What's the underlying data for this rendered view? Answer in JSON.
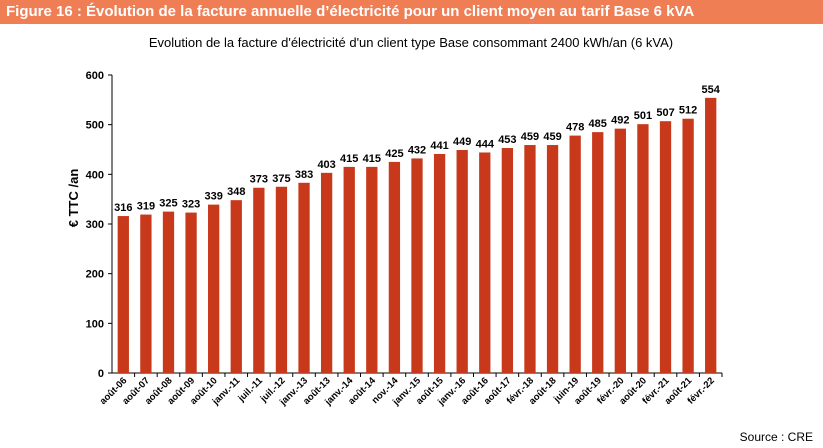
{
  "figure_title": "Figure 16 : Évolution de la facture annuelle d’électricité pour un client moyen au tarif Base 6 kVA",
  "source": "Source : CRE",
  "colors": {
    "bar": "#c8391b",
    "header_bg": "#f07e55"
  },
  "chart_data": {
    "type": "bar",
    "title": "Evolution de la facture d'électricité d'un client type Base consommant 2400 kWh/an (6 kVA)",
    "xlabel": "",
    "ylabel": "€ TTC /an",
    "ylim": [
      0,
      600
    ],
    "yticks": [
      0,
      100,
      200,
      300,
      400,
      500,
      600
    ],
    "grid": false,
    "categories": [
      "août-06",
      "août-07",
      "août-08",
      "août-09",
      "août-10",
      "janv.-11",
      "juil.-11",
      "juil.-12",
      "janv.-13",
      "août-13",
      "janv.-14",
      "août-14",
      "nov.-14",
      "janv.-15",
      "août-15",
      "janv.-16",
      "août-16",
      "août-17",
      "févr.-18",
      "août-18",
      "juin-19",
      "août-19",
      "févr.-20",
      "août-20",
      "févr.-21",
      "août-21",
      "févr.-22"
    ],
    "values": [
      316,
      319,
      325,
      323,
      339,
      348,
      373,
      375,
      383,
      403,
      415,
      415,
      425,
      432,
      441,
      449,
      444,
      453,
      459,
      459,
      478,
      485,
      492,
      501,
      507,
      512,
      554
    ]
  }
}
